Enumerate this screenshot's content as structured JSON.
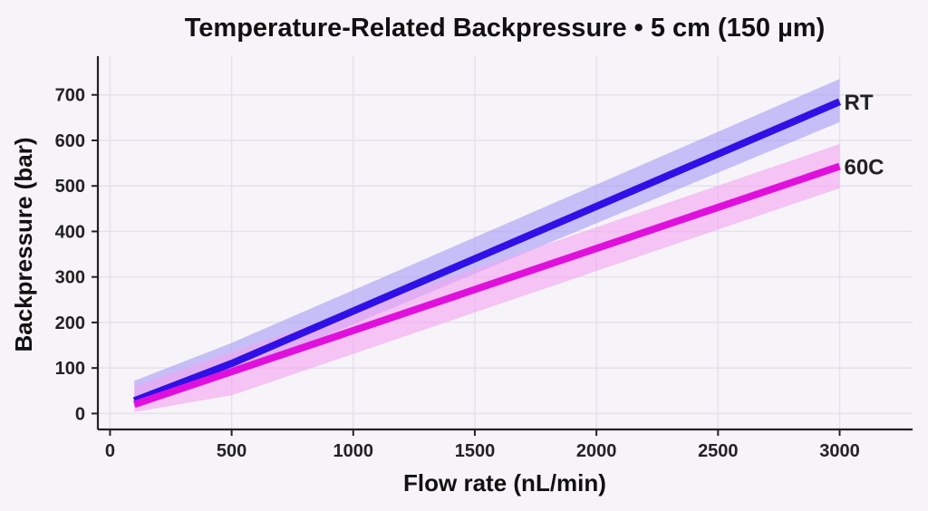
{
  "chart_data": {
    "type": "line",
    "title": "Temperature-Related Backpressure • 5 cm (150 µm)",
    "xlabel": "Flow rate (nL/min)",
    "ylabel": "Backpressure (bar)",
    "xlim": [
      -50,
      3300
    ],
    "ylim": [
      -35,
      785
    ],
    "x_ticks": [
      0,
      500,
      1000,
      1500,
      2000,
      2500,
      3000
    ],
    "y_ticks": [
      0,
      100,
      200,
      300,
      400,
      500,
      600,
      700
    ],
    "grid": true,
    "legend": "direct-labels-at-line-ends",
    "series": [
      {
        "name": "RT",
        "color": "#2f10e6",
        "band_color": "#a89cf6",
        "x": [
          100,
          500,
          3000
        ],
        "y": [
          28,
          110,
          685
        ],
        "lower": [
          15,
          85,
          640
        ],
        "upper": [
          72,
          155,
          735
        ]
      },
      {
        "name": "60C",
        "color": "#e010dc",
        "band_color": "#f4a4f0",
        "x": [
          100,
          500,
          3000
        ],
        "y": [
          20,
          92,
          543
        ],
        "lower": [
          3,
          40,
          495
        ],
        "upper": [
          60,
          135,
          592
        ]
      }
    ]
  }
}
